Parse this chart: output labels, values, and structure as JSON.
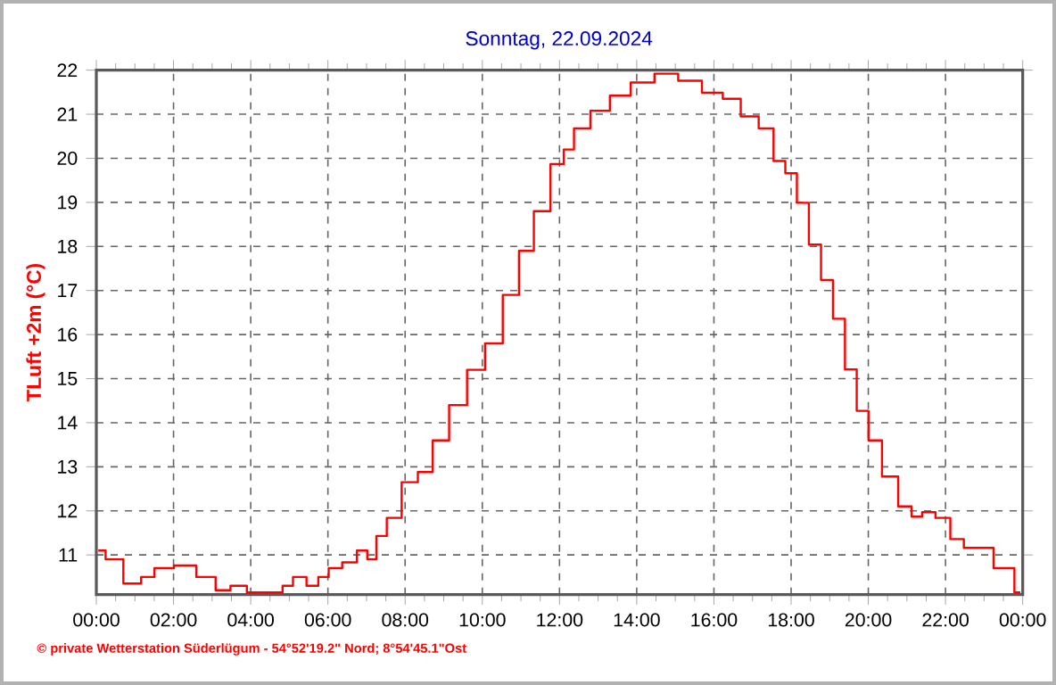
{
  "chart_data": {
    "type": "step",
    "title": "Sonntag, 22.09.2024",
    "ylabel": "TLuft +2m (°C)",
    "annotations": [
      "© private Wetterstation Süderlügum - 54°52'19.2\" Nord; 8°54'45.1\"Ost"
    ],
    "x": [
      0.05,
      0.43,
      0.97,
      1.35,
      1.66,
      2.36,
      2.82,
      3.36,
      3.59,
      4.21,
      4.75,
      4.9,
      5.29,
      5.6,
      5.9,
      6.14,
      6.6,
      6.9,
      7.14,
      7.37,
      7.68,
      8.14,
      8.52,
      8.91,
      9.37,
      9.84,
      10.3,
      10.76,
      11.14,
      11.53,
      12.0,
      12.22,
      12.53,
      13.07,
      13.54,
      14.15,
      14.77,
      15.38,
      16.0,
      16.46,
      16.93,
      17.39,
      17.7,
      18.0,
      18.3,
      18.62,
      18.93,
      19.24,
      19.55,
      19.85,
      20.16,
      20.55,
      21.0,
      21.24,
      21.55,
      21.93,
      22.32,
      22.63,
      23.09,
      23.4,
      23.63,
      23.94
    ],
    "series": [
      {
        "color": "#ff0000",
        "values": [
          11.1,
          10.9,
          10.35,
          10.5,
          10.7,
          10.76,
          10.5,
          10.2,
          10.3,
          10.15,
          10.15,
          10.3,
          10.5,
          10.3,
          10.5,
          10.7,
          10.83,
          11.1,
          10.9,
          11.43,
          11.84,
          12.65,
          12.88,
          13.6,
          14.4,
          15.2,
          15.8,
          16.9,
          17.9,
          18.8,
          19.87,
          20.2,
          20.68,
          21.08,
          21.42,
          21.72,
          21.92,
          21.76,
          21.49,
          21.35,
          20.95,
          20.68,
          19.94,
          19.66,
          18.99,
          18.04,
          17.24,
          16.36,
          15.21,
          14.27,
          13.6,
          12.78,
          12.1,
          11.87,
          11.97,
          11.84,
          11.36,
          11.16,
          11.16,
          10.7,
          10.7,
          10.15
        ]
      }
    ],
    "xlim": [
      0,
      24
    ],
    "ylim": [
      10.1,
      22
    ],
    "xticks": [
      {
        "value": 0,
        "label": "00:00"
      },
      {
        "value": 2,
        "label": "02:00"
      },
      {
        "value": 4,
        "label": "04:00"
      },
      {
        "value": 6,
        "label": "06:00"
      },
      {
        "value": 8,
        "label": "08:00"
      },
      {
        "value": 10,
        "label": "10:00"
      },
      {
        "value": 12,
        "label": "12:00"
      },
      {
        "value": 14,
        "label": "14:00"
      },
      {
        "value": 16,
        "label": "16:00"
      },
      {
        "value": 18,
        "label": "18:00"
      },
      {
        "value": 20,
        "label": "20:00"
      },
      {
        "value": 22,
        "label": "22:00"
      },
      {
        "value": 24,
        "label": "00:00"
      }
    ],
    "yticks": [
      11,
      12,
      13,
      14,
      15,
      16,
      17,
      18,
      19,
      20,
      21,
      22
    ],
    "grid": true,
    "marker": "none",
    "line_style": "solid"
  }
}
